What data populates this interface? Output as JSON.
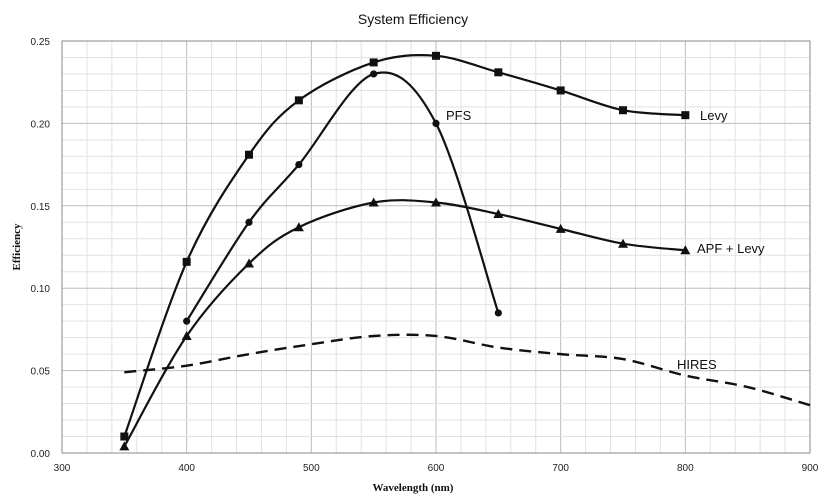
{
  "chart_data": {
    "type": "line",
    "title": "System Efficiency",
    "xlabel": "Wavelength (nm)",
    "ylabel": "Efficiency",
    "xlim": [
      300,
      900
    ],
    "ylim": [
      0,
      0.25
    ],
    "x_ticks": [
      300,
      400,
      500,
      600,
      700,
      800,
      900
    ],
    "y_ticks": [
      "0.00",
      "0.05",
      "0.10",
      "0.15",
      "0.20",
      "0.25"
    ],
    "grid": true,
    "series": [
      {
        "name": "Levy",
        "marker": "square",
        "style": "solid",
        "x": [
          350,
          400,
          450,
          490,
          550,
          600,
          650,
          700,
          750,
          800
        ],
        "y": [
          0.01,
          0.116,
          0.181,
          0.214,
          0.237,
          0.241,
          0.231,
          0.22,
          0.208,
          0.205
        ]
      },
      {
        "name": "PFS",
        "marker": "circle",
        "style": "solid",
        "x": [
          400,
          450,
          490,
          550,
          600,
          650
        ],
        "y": [
          0.08,
          0.14,
          0.175,
          0.23,
          0.2,
          0.085
        ]
      },
      {
        "name": "APF + Levy",
        "marker": "triangle",
        "style": "solid",
        "x": [
          350,
          400,
          450,
          490,
          550,
          600,
          650,
          700,
          750,
          800
        ],
        "y": [
          0.004,
          0.071,
          0.115,
          0.137,
          0.152,
          0.152,
          0.145,
          0.136,
          0.127,
          0.123
        ]
      },
      {
        "name": "HIRES",
        "marker": "none",
        "style": "dashed",
        "x": [
          350,
          400,
          450,
          500,
          550,
          600,
          650,
          700,
          750,
          800,
          850,
          900
        ],
        "y": [
          0.049,
          0.053,
          0.06,
          0.066,
          0.071,
          0.071,
          0.064,
          0.06,
          0.057,
          0.047,
          0.04,
          0.029
        ]
      }
    ]
  }
}
